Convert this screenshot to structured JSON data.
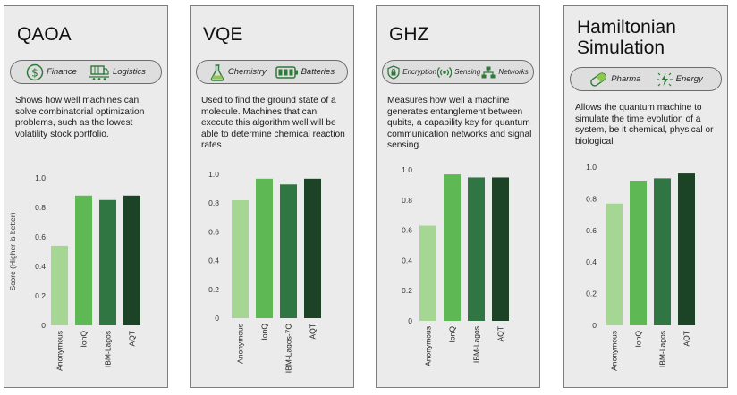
{
  "colors": {
    "anonymous": "#a5d693",
    "ionq": "#5eb854",
    "ibm": "#2f7642",
    "aqt": "#1c4326",
    "icon": "#2f7a3a"
  },
  "panels": [
    {
      "title": "QAOA",
      "tags": [
        {
          "icon": "money-icon",
          "label": "Finance"
        },
        {
          "icon": "logistics-icon",
          "label": "Logistics"
        }
      ],
      "description": "Shows how well machines can solve combinatorial optimization problems, such as the lowest volatility stock portfolio."
    },
    {
      "title": "VQE",
      "tags": [
        {
          "icon": "flask-icon",
          "label": "Chemistry"
        },
        {
          "icon": "battery-icon",
          "label": "Batteries"
        }
      ],
      "description": "Used to find the ground state of a molecule. Machines that can execute this algorithm well will be able to determine chemical reaction rates"
    },
    {
      "title": "GHZ",
      "tags": [
        {
          "icon": "lock-icon",
          "label": "Encryption"
        },
        {
          "icon": "signal-icon",
          "label": "Sensing"
        },
        {
          "icon": "network-icon",
          "label": "Networks"
        }
      ],
      "description": "Measures how well a machine generates entanglement between qubits, a capability key for quantum communication networks and signal sensing."
    },
    {
      "title": "Hamiltonian\nSimulation",
      "tags": [
        {
          "icon": "pill-icon",
          "label": "Pharma"
        },
        {
          "icon": "energy-icon",
          "label": "Energy"
        }
      ],
      "description": "Allows the quantum machine to simulate the time evolution of a system, be it chemical, physical or biological"
    }
  ],
  "chart_data": [
    {
      "type": "bar",
      "title": "QAOA",
      "categories": [
        "Anonymous",
        "IonQ",
        "IBM-Lagos",
        "AQT"
      ],
      "values": [
        0.54,
        0.88,
        0.85,
        0.88
      ],
      "ylabel": "Score (Higher is better)",
      "ylim": [
        0,
        1.0
      ],
      "yticks": [
        "0",
        "0.2",
        "0.4",
        "0.6",
        "0.8",
        "1.0"
      ],
      "grid": false
    },
    {
      "type": "bar",
      "title": "VQE",
      "categories": [
        "Anonymous",
        "IonQ",
        "IBM-Lagos-7Q",
        "AQT"
      ],
      "values": [
        0.82,
        0.97,
        0.93,
        0.97
      ],
      "ylabel": "",
      "ylim": [
        0,
        1.0
      ],
      "yticks": [
        "0",
        "0.2",
        "0.4",
        "0.6",
        "0.8",
        "1.0"
      ],
      "grid": false
    },
    {
      "type": "bar",
      "title": "GHZ",
      "categories": [
        "Anonymous",
        "IonQ",
        "IBM-Lagos",
        "AQT"
      ],
      "values": [
        0.63,
        0.97,
        0.95,
        0.95
      ],
      "ylabel": "",
      "ylim": [
        0,
        1.0
      ],
      "yticks": [
        "0",
        "0.2",
        "0.4",
        "0.6",
        "0.8",
        "1.0"
      ],
      "grid": false
    },
    {
      "type": "bar",
      "title": "Hamiltonian Simulation",
      "categories": [
        "Anonymous",
        "IonQ",
        "IBM-Lagos",
        "AQT"
      ],
      "values": [
        0.77,
        0.91,
        0.93,
        0.96
      ],
      "ylabel": "",
      "ylim": [
        0,
        1.0
      ],
      "yticks": [
        "0",
        "0.2",
        "0.4",
        "0.6",
        "0.8",
        "1.0"
      ],
      "grid": false
    }
  ]
}
